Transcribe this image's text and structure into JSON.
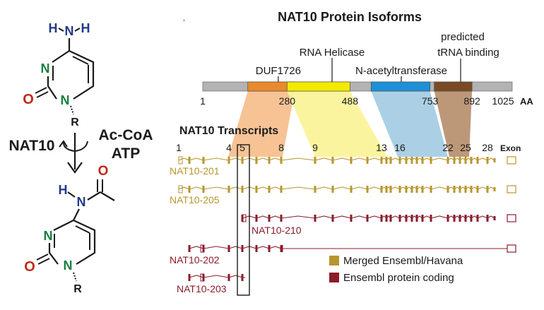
{
  "colors": {
    "gold": "#b8962e",
    "maroon": "#8b1c2c",
    "bond": "#1a1a1a",
    "nitrogen_blue": "#1e3a8a",
    "nitrogen_green": "#15803d",
    "oxygen_red": "#c0291b",
    "protein_bar": "#b3b3b3",
    "duf": "#e8892e",
    "helicase": "#f2ea00",
    "acetyl": "#1e90d6",
    "trna": "#7a4a25",
    "shade_duf": "#f7c08f",
    "shade_helicase": "#fbf39a",
    "shade_acetyl": "#a6cde4",
    "shade_trna": "#b89272"
  },
  "chemistry": {
    "top_molecule": {
      "amino_H_left": "H",
      "amino_N": "N",
      "amino_H_right": "H",
      "ring_N3": "N",
      "ring_N1": "N",
      "carbonyl_O": "O",
      "substituent_R": "R"
    },
    "enzyme": "NAT10",
    "cofactor_1": "Ac-CoA",
    "cofactor_2": "ATP",
    "bottom_molecule": {
      "acetyl_O": "O",
      "amide_H": "H",
      "amide_N": "N",
      "ring_N3": "N",
      "ring_N1": "N",
      "carbonyl_O": "O",
      "substituent_R": "R"
    }
  },
  "protein": {
    "title": "NAT10 Protein Isoforms",
    "length": 1025,
    "unit": "AA",
    "domains": [
      {
        "id": "duf",
        "name": "DUF1726",
        "start": 150,
        "end": 305
      },
      {
        "id": "helicase",
        "name": "RNA Helicase",
        "start": 280,
        "end": 488
      },
      {
        "id": "acetyl",
        "name": "N-acetyltransferase",
        "start": 558,
        "end": 753
      },
      {
        "id": "trna",
        "name_line1": "predicted",
        "name_line2": "tRNA binding",
        "start": 767,
        "end": 892
      }
    ],
    "positions": [
      "1",
      "280",
      "488",
      "753",
      "892",
      "1025"
    ],
    "positions_values": [
      1,
      280,
      488,
      753,
      892,
      1025
    ]
  },
  "transcripts": {
    "title": "NAT10 Transcripts",
    "exon_word": "Exon",
    "exon_numbers": [
      {
        "label": "1",
        "exon": 1
      },
      {
        "label": "4",
        "exon": 4
      },
      {
        "label": "5",
        "exon": 5
      },
      {
        "label": "8",
        "exon": 8
      },
      {
        "label": "9",
        "exon": 9
      },
      {
        "label": "13",
        "exon": 13
      },
      {
        "label": "16",
        "exon": 16
      },
      {
        "label": "22",
        "exon": 22
      },
      {
        "label": "25",
        "exon": 25
      },
      {
        "label": "28",
        "exon": 28
      }
    ],
    "items": [
      {
        "name": "NAT10-201",
        "type": "merged"
      },
      {
        "name": "NAT10-205",
        "type": "merged"
      },
      {
        "name": "NAT10-210",
        "type": "protein_coding"
      },
      {
        "name": "NAT10-202",
        "type": "protein_coding"
      },
      {
        "name": "NAT10-203",
        "type": "protein_coding"
      }
    ],
    "legend": [
      {
        "label": "Merged Ensembl/Havana",
        "type": "merged"
      },
      {
        "label": "Ensembl protein coding",
        "type": "protein_coding"
      }
    ]
  }
}
